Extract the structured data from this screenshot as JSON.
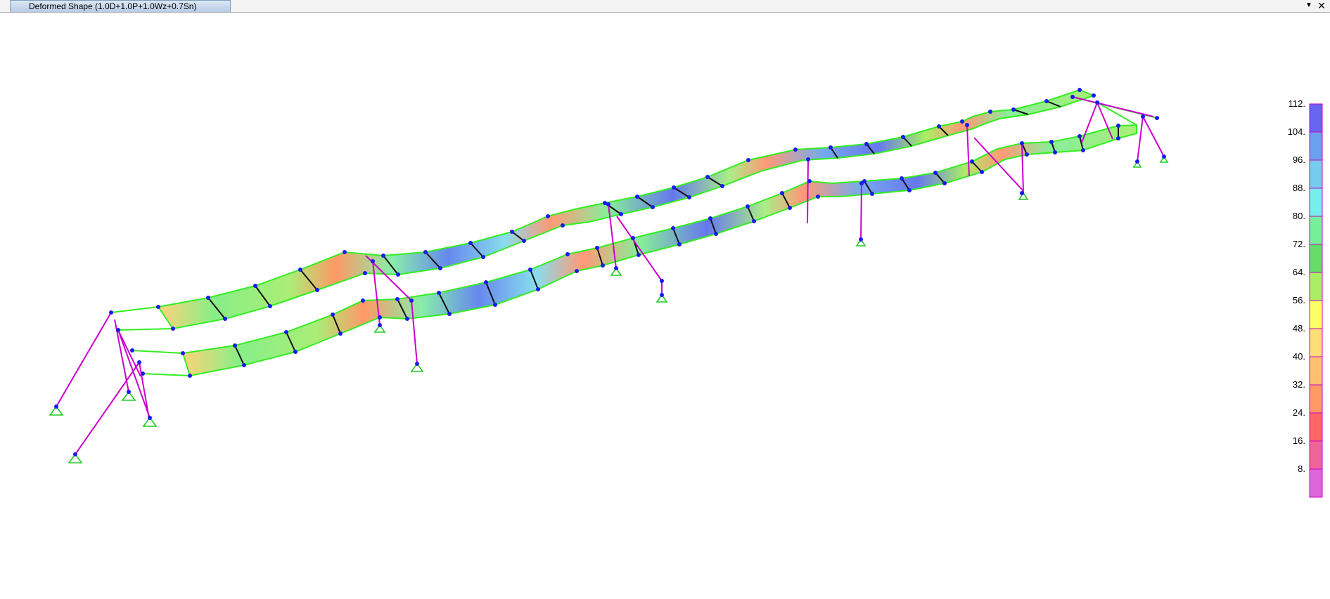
{
  "window": {
    "tab_title": "Deformed Shape (1.0D+1.0P+1.0Wz+0.7Sn)",
    "dropdown_icon": "chevron-down-icon",
    "close_icon": "close-icon"
  },
  "model_view": {
    "description_colors": {
      "member": "#cc00cc",
      "edge": "#33ee22",
      "node": "#1a1aee",
      "support": "#22cc22"
    }
  },
  "legend": {
    "labels": [
      "112.",
      "104.",
      "96.",
      "88.",
      "80.",
      "72.",
      "64.",
      "56.",
      "48.",
      "40.",
      "32.",
      "24.",
      "16.",
      "8."
    ],
    "band_colors": [
      "#6666ee",
      "#6aa0ee",
      "#77ccee",
      "#77eeee",
      "#77ee99",
      "#66dd66",
      "#aaee66",
      "#ffff66",
      "#ffdd77",
      "#ffc070",
      "#ff9966",
      "#ff6666",
      "#ee6699",
      "#dd66dd"
    ]
  }
}
